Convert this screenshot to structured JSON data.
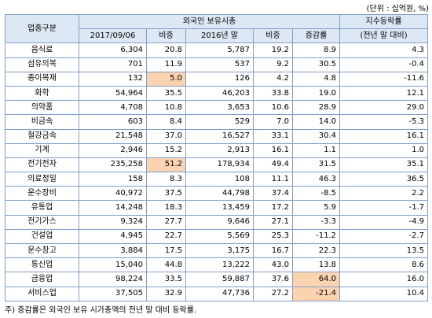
{
  "unit_label": "(단위 : 십억원, %)",
  "header": {
    "category": "업종구분",
    "foreign_holdings": "외국인 보유시총",
    "index_change": "지수등락률",
    "index_change_sub": "(전년 말 대비)",
    "date_2017": "2017/09/06",
    "weight1": "비중",
    "end_2016": "2016년 말",
    "weight2": "비중",
    "change_rate": "증감률"
  },
  "rows": [
    {
      "name": "음식료",
      "v2017": "6,304",
      "w1": "20.8",
      "v2016": "5,787",
      "w2": "19.2",
      "chg": "8.9",
      "idx": "4.3"
    },
    {
      "name": "섬유의복",
      "v2017": "701",
      "w1": "11.9",
      "v2016": "537",
      "w2": "9.2",
      "chg": "30.5",
      "idx": "-0.4"
    },
    {
      "name": "종이목재",
      "v2017": "132",
      "w1": "5.0",
      "v2016": "126",
      "w2": "4.2",
      "chg": "4.8",
      "idx": "-11.6"
    },
    {
      "name": "화학",
      "v2017": "54,964",
      "w1": "35.5",
      "v2016": "46,203",
      "w2": "33.8",
      "chg": "19.0",
      "idx": "12.1"
    },
    {
      "name": "의약품",
      "v2017": "4,708",
      "w1": "10.8",
      "v2016": "3,653",
      "w2": "10.6",
      "chg": "28.9",
      "idx": "29.0"
    },
    {
      "name": "비금속",
      "v2017": "603",
      "w1": "8.4",
      "v2016": "529",
      "w2": "7.0",
      "chg": "14.0",
      "idx": "-5.3"
    },
    {
      "name": "철강금속",
      "v2017": "21,548",
      "w1": "37.0",
      "v2016": "16,527",
      "w2": "33.1",
      "chg": "30.4",
      "idx": "16.1"
    },
    {
      "name": "기계",
      "v2017": "2,946",
      "w1": "15.2",
      "v2016": "2,913",
      "w2": "16.1",
      "chg": "1.1",
      "idx": "1.0"
    },
    {
      "name": "전기전자",
      "v2017": "235,258",
      "w1": "51.2",
      "v2016": "178,934",
      "w2": "49.4",
      "chg": "31.5",
      "idx": "35.1"
    },
    {
      "name": "의료정밀",
      "v2017": "158",
      "w1": "8.3",
      "v2016": "108",
      "w2": "11.1",
      "chg": "46.3",
      "idx": "36.5"
    },
    {
      "name": "운수장비",
      "v2017": "40,972",
      "w1": "37.5",
      "v2016": "44,798",
      "w2": "37.4",
      "chg": "-8.5",
      "idx": "2.2"
    },
    {
      "name": "유통업",
      "v2017": "14,248",
      "w1": "18.3",
      "v2016": "13,459",
      "w2": "17.2",
      "chg": "5.9",
      "idx": "-1.7"
    },
    {
      "name": "전기가스",
      "v2017": "9,324",
      "w1": "27.7",
      "v2016": "9,646",
      "w2": "27.1",
      "chg": "-3.3",
      "idx": "-4.9"
    },
    {
      "name": "건설업",
      "v2017": "4,945",
      "w1": "22.7",
      "v2016": "5,569",
      "w2": "25.3",
      "chg": "-11.2",
      "idx": "-2.7"
    },
    {
      "name": "운수창고",
      "v2017": "3,884",
      "w1": "17.5",
      "v2016": "3,175",
      "w2": "16.7",
      "chg": "22.3",
      "idx": "13.5"
    },
    {
      "name": "통신업",
      "v2017": "15,040",
      "w1": "44.8",
      "v2016": "13,222",
      "w2": "43.0",
      "chg": "13.8",
      "idx": "8.6"
    },
    {
      "name": "금융업",
      "v2017": "98,224",
      "w1": "33.5",
      "v2016": "59,887",
      "w2": "37.6",
      "chg": "64.0",
      "idx": "16.0"
    },
    {
      "name": "서비스업",
      "v2017": "37,505",
      "w1": "32.9",
      "v2016": "47,736",
      "w2": "27.2",
      "chg": "-21.4",
      "idx": "10.4"
    }
  ],
  "highlight_color": "#fbd3b1",
  "note": "주) 증감률은 외국인 보유 시가총액의 전년 말 대비 등락률."
}
